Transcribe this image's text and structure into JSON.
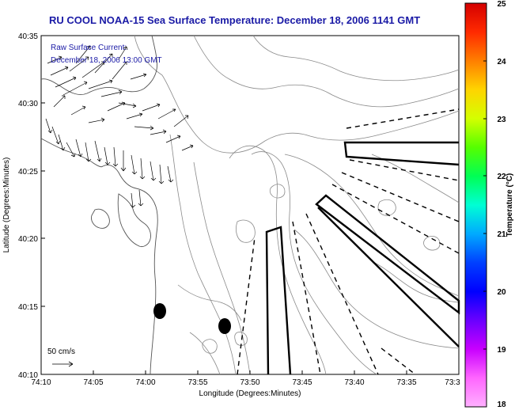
{
  "title": "RU COOL  NOAA-15  Sea Surface Temperature:  December 18, 2006 1141 GMT",
  "legend": {
    "current_label_line1": "Raw Surface Current:",
    "current_label_line2": "December 18, 2006 13:00 GMT",
    "scale_vector_label": "50 cm/s"
  },
  "axes": {
    "xlabel": "Longitude (Degrees:Minutes)",
    "ylabel": "Latitude (Degrees:Minutes)",
    "x_ticks": [
      "74:10",
      "74:05",
      "74:00",
      "73:55",
      "73:50",
      "73:45",
      "73:40",
      "73:35",
      "73:3"
    ],
    "y_ticks": [
      "40:35",
      "40:30",
      "40:25",
      "40:20",
      "40:15",
      "40:10"
    ]
  },
  "colorbar": {
    "label": "Temperature (°C)",
    "ticks": [
      "25",
      "24",
      "23",
      "22",
      "21",
      "20",
      "19",
      "18"
    ],
    "colors": [
      "#d40000",
      "#ff2a00",
      "#ff7f00",
      "#ffd400",
      "#d4ff00",
      "#55ff00",
      "#00ff55",
      "#00ffd4",
      "#00aaff",
      "#0040ff",
      "#0000ff",
      "#6a00ff",
      "#c800ff",
      "#ff66ff",
      "#ffb0ff"
    ]
  },
  "colors": {
    "title": "#1a1aa6",
    "contours": "#888888",
    "features": "#000000"
  }
}
